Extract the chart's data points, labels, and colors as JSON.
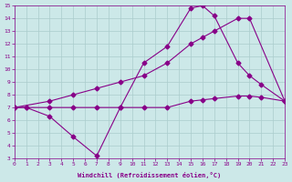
{
  "xlabel": "Windchill (Refroidissement éolien,°C)",
  "bg_color": "#cce8e8",
  "line_color": "#880088",
  "grid_color": "#aacccc",
  "xmin": 0,
  "xmax": 23,
  "ymin": 3,
  "ymax": 15,
  "line1_x": [
    0,
    1,
    3,
    5,
    7,
    9,
    11,
    13,
    15,
    16,
    17,
    19,
    20,
    21,
    23
  ],
  "line1_y": [
    7,
    7,
    6.3,
    4.7,
    3.2,
    7,
    10.5,
    11.8,
    14.8,
    15.0,
    14.2,
    10.5,
    9.5,
    8.8,
    7.5
  ],
  "line2_x": [
    0,
    3,
    5,
    7,
    9,
    11,
    13,
    15,
    16,
    17,
    19,
    20,
    23
  ],
  "line2_y": [
    7,
    7.5,
    8.0,
    8.5,
    9.0,
    9.5,
    10.5,
    12.0,
    12.5,
    13.0,
    14.0,
    14.0,
    7.5
  ],
  "line3_x": [
    0,
    1,
    3,
    5,
    7,
    9,
    11,
    13,
    15,
    16,
    17,
    19,
    20,
    21,
    23
  ],
  "line3_y": [
    7,
    7,
    7,
    7,
    7,
    7,
    7,
    7,
    7.5,
    7.6,
    7.7,
    7.9,
    7.9,
    7.8,
    7.5
  ]
}
